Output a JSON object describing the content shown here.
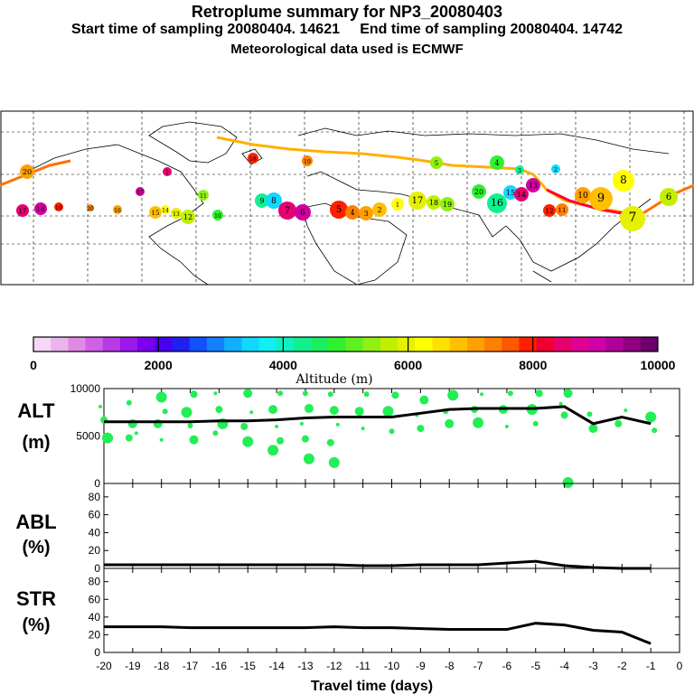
{
  "header": {
    "title": "Retroplume summary for NP3_20080403",
    "start_label": "Start time of sampling 20080404. 14621",
    "end_label": "End time of sampling 20080404. 14742",
    "met_label": "Meteorological data used is ECMWF"
  },
  "colorbar": {
    "ticks": [
      "0",
      "2000",
      "4000",
      "6000",
      "8000",
      "10000"
    ],
    "label": "Altitude (m)",
    "colors": [
      "#f5d8f5",
      "#ecb4ec",
      "#e08ae6",
      "#d060e6",
      "#b63ae6",
      "#9a18ea",
      "#7a00f0",
      "#4a00f0",
      "#2020f0",
      "#1050ff",
      "#1480ff",
      "#10b0ff",
      "#10d8ff",
      "#10f0f0",
      "#10f0c0",
      "#10f090",
      "#18f060",
      "#30f030",
      "#60f020",
      "#90f010",
      "#c0f000",
      "#e6f000",
      "#ffff00",
      "#ffe000",
      "#ffc000",
      "#ffa000",
      "#ff8000",
      "#ff5800",
      "#ff2000",
      "#f00030",
      "#e6006c",
      "#e00094",
      "#d000a8",
      "#b00098",
      "#900080",
      "#6a0068"
    ]
  },
  "map": {
    "markers": [
      {
        "label": "13",
        "c": "#e60070"
      },
      {
        "label": "12",
        "c": "#d000a0"
      },
      {
        "label": "11",
        "c": "#ff2000"
      },
      {
        "label": "10",
        "c": "#ff8000"
      },
      {
        "label": "9",
        "c": "#ffa000"
      },
      {
        "label": "8",
        "c": "#ffc000"
      },
      {
        "label": "7",
        "c": "#ffff00"
      },
      {
        "label": "6",
        "c": "#e6f000"
      },
      {
        "label": "5",
        "c": "#c0f000"
      },
      {
        "label": "4",
        "c": "#90f010"
      },
      {
        "label": "3",
        "c": "#30f030"
      },
      {
        "label": "2",
        "c": "#10f090"
      },
      {
        "label": "1",
        "c": "#10d8ff"
      }
    ],
    "marker_labels": [
      "17",
      "18",
      "19",
      "20",
      "16",
      "15",
      "14",
      "13",
      "12",
      "11",
      "10",
      "9",
      "8",
      "7",
      "6",
      "5",
      "4",
      "3",
      "2",
      "1"
    ]
  },
  "chart_data": [
    {
      "type": "line",
      "title": "ALT (m)",
      "label_top": "ALT",
      "label_bottom": "(m)",
      "x": [
        -20,
        -19,
        -18,
        -17,
        -16,
        -15,
        -14,
        -13,
        -12,
        -11,
        -10,
        -9,
        -8,
        -7,
        -6,
        -5,
        -4,
        -3,
        -2,
        -1
      ],
      "values": [
        6500,
        6500,
        6500,
        6500,
        6600,
        6600,
        6700,
        6900,
        7000,
        7000,
        7000,
        7400,
        7800,
        7900,
        7900,
        7900,
        8100,
        6300,
        7000,
        6300
      ],
      "ylim": [
        0,
        10000
      ],
      "yticks": [
        "10000",
        "5000",
        "0"
      ],
      "scatter": [
        {
          "x": -20,
          "y": 8100
        },
        {
          "x": -20,
          "y": 6700
        },
        {
          "x": -20,
          "y": 4800
        },
        {
          "x": -19,
          "y": 8500
        },
        {
          "x": -19,
          "y": 6300
        },
        {
          "x": -19,
          "y": 5300
        },
        {
          "x": -19,
          "y": 4800
        },
        {
          "x": -18,
          "y": 9100
        },
        {
          "x": -18,
          "y": 7600
        },
        {
          "x": -18,
          "y": 6300
        },
        {
          "x": -18,
          "y": 4600
        },
        {
          "x": -17,
          "y": 9400
        },
        {
          "x": -17,
          "y": 7500
        },
        {
          "x": -17,
          "y": 6100
        },
        {
          "x": -17,
          "y": 4600
        },
        {
          "x": -16,
          "y": 9500
        },
        {
          "x": -16,
          "y": 7800
        },
        {
          "x": -16,
          "y": 6300
        },
        {
          "x": -16,
          "y": 5300
        },
        {
          "x": -15,
          "y": 9500
        },
        {
          "x": -15,
          "y": 7500
        },
        {
          "x": -15,
          "y": 6000
        },
        {
          "x": -15,
          "y": 4400
        },
        {
          "x": -14,
          "y": 9500
        },
        {
          "x": -14,
          "y": 7800
        },
        {
          "x": -14,
          "y": 6000
        },
        {
          "x": -14,
          "y": 4500
        },
        {
          "x": -14,
          "y": 3500
        },
        {
          "x": -13,
          "y": 9500
        },
        {
          "x": -13,
          "y": 7900
        },
        {
          "x": -13,
          "y": 6300
        },
        {
          "x": -13,
          "y": 4700
        },
        {
          "x": -13,
          "y": 2600
        },
        {
          "x": -12,
          "y": 9400
        },
        {
          "x": -12,
          "y": 7700
        },
        {
          "x": -12,
          "y": 6200
        },
        {
          "x": -12,
          "y": 4300
        },
        {
          "x": -12,
          "y": 2200
        },
        {
          "x": -11,
          "y": 9400
        },
        {
          "x": -11,
          "y": 7600
        },
        {
          "x": -11,
          "y": 5800
        },
        {
          "x": -10,
          "y": 9300
        },
        {
          "x": -10,
          "y": 7600
        },
        {
          "x": -10,
          "y": 5500
        },
        {
          "x": -9,
          "y": 8800
        },
        {
          "x": -9,
          "y": 7200
        },
        {
          "x": -9,
          "y": 5800
        },
        {
          "x": -8,
          "y": 9300
        },
        {
          "x": -8,
          "y": 7600
        },
        {
          "x": -8,
          "y": 6300
        },
        {
          "x": -7,
          "y": 9400
        },
        {
          "x": -7,
          "y": 7800
        },
        {
          "x": -7,
          "y": 6400
        },
        {
          "x": -6,
          "y": 9500
        },
        {
          "x": -6,
          "y": 7800
        },
        {
          "x": -6,
          "y": 6000
        },
        {
          "x": -5,
          "y": 9500
        },
        {
          "x": -5,
          "y": 7800
        },
        {
          "x": -5,
          "y": 6300
        },
        {
          "x": -4,
          "y": 9500
        },
        {
          "x": -4,
          "y": 8400
        },
        {
          "x": -4,
          "y": 7200
        },
        {
          "x": -4,
          "y": 100
        },
        {
          "x": -3,
          "y": 7300
        },
        {
          "x": -3,
          "y": 5800
        },
        {
          "x": -2,
          "y": 7700
        },
        {
          "x": -2,
          "y": 6300
        },
        {
          "x": -1,
          "y": 7000
        },
        {
          "x": -1,
          "y": 5600
        }
      ]
    },
    {
      "type": "line",
      "title": "ABL (%)",
      "label_top": "ABL",
      "label_bottom": "(%)",
      "x": [
        -20,
        -19,
        -18,
        -17,
        -16,
        -15,
        -14,
        -13,
        -12,
        -11,
        -10,
        -9,
        -8,
        -7,
        -6,
        -5,
        -4,
        -3,
        -2,
        -1
      ],
      "values": [
        4,
        4,
        4,
        4,
        4,
        4,
        4,
        4,
        4,
        3,
        3,
        4,
        4,
        4,
        6,
        8,
        3,
        1,
        0,
        0
      ],
      "ylim": [
        0,
        95
      ],
      "yticks": [
        "80",
        "60",
        "40",
        "20",
        "0"
      ]
    },
    {
      "type": "line",
      "title": "STR (%)",
      "label_top": "STR",
      "label_bottom": "(%)",
      "x": [
        -20,
        -19,
        -18,
        -17,
        -16,
        -15,
        -14,
        -13,
        -12,
        -11,
        -10,
        -9,
        -8,
        -7,
        -6,
        -5,
        -4,
        -3,
        -2,
        -1
      ],
      "values": [
        29,
        29,
        29,
        28,
        28,
        28,
        28,
        28,
        29,
        28,
        28,
        27,
        26,
        26,
        26,
        33,
        31,
        25,
        23,
        10
      ],
      "ylim": [
        0,
        95
      ],
      "yticks": [
        "80",
        "60",
        "40",
        "20",
        "0"
      ],
      "xticks": [
        "-20",
        "-19",
        "-18",
        "-17",
        "-16",
        "-15",
        "-14",
        "-13",
        "-12",
        "-11",
        "-10",
        "-9",
        "-8",
        "-7",
        "-6",
        "-5",
        "-4",
        "-3",
        "-2",
        "-1",
        "0"
      ],
      "xlabel": "Travel time (days)"
    }
  ]
}
